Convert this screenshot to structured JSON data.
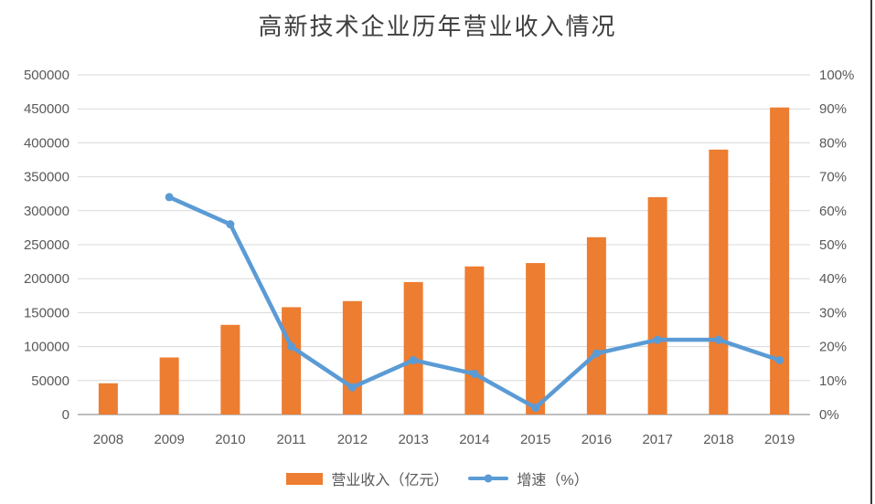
{
  "title": "高新技术企业历年营业收入情况",
  "colors": {
    "bar": "#ED7D31",
    "line": "#5B9BD5",
    "grid": "#D9D9D9",
    "axis_line": "#BFBFBF",
    "axis_text": "#595959",
    "title_text": "#3F3F3F",
    "right_border": "#3A3A3A",
    "background": "#FFFFFF"
  },
  "chart_data": {
    "type": "combo-bar-line",
    "title": "高新技术企业历年营业收入情况",
    "categories": [
      "2008",
      "2009",
      "2010",
      "2011",
      "2012",
      "2013",
      "2014",
      "2015",
      "2016",
      "2017",
      "2018",
      "2019"
    ],
    "series": [
      {
        "name": "营业收入（亿元）",
        "type": "bar",
        "axis": "left",
        "values": [
          46000,
          84000,
          132000,
          158000,
          167000,
          195000,
          218000,
          223000,
          261000,
          320000,
          390000,
          452000
        ]
      },
      {
        "name": "增速（%）",
        "type": "line",
        "axis": "right",
        "values": [
          null,
          64,
          56,
          20,
          8,
          16,
          12,
          2,
          18,
          22,
          22,
          16
        ]
      }
    ],
    "left_axis": {
      "min": 0,
      "max": 500000,
      "step": 50000,
      "tick_labels": [
        "0",
        "50000",
        "100000",
        "150000",
        "200000",
        "250000",
        "300000",
        "350000",
        "400000",
        "450000",
        "500000"
      ]
    },
    "right_axis": {
      "min": 0,
      "max": 100,
      "step": 10,
      "tick_labels": [
        "0%",
        "10%",
        "20%",
        "30%",
        "40%",
        "50%",
        "60%",
        "70%",
        "80%",
        "90%",
        "100%"
      ]
    },
    "grid": true,
    "legend_position": "bottom"
  },
  "legend": {
    "items": [
      {
        "label": "营业收入（亿元）",
        "swatch": "bar"
      },
      {
        "label": "增速（%）",
        "swatch": "line"
      }
    ]
  }
}
